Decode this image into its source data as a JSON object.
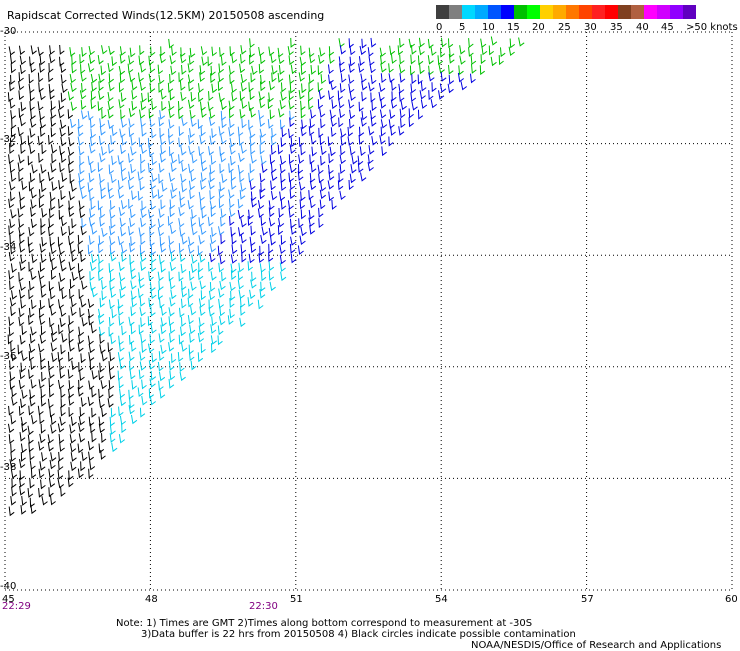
{
  "title": "Rapidscat Corrected Winds(12.5KM) 20150508 ascending",
  "colorbar": {
    "colors": [
      "#3f3f3f",
      "#7f7f7f",
      "#00d8ff",
      "#00aaff",
      "#0055ff",
      "#0000ff",
      "#00c000",
      "#00ff00",
      "#ffd000",
      "#ffaa00",
      "#ff7700",
      "#ff4400",
      "#ff2020",
      "#ff0000",
      "#804020",
      "#b06040",
      "#ff00ff",
      "#d000ff",
      "#9000ff",
      "#6000c0"
    ],
    "labels": [
      "0",
      "5",
      "10",
      "15",
      "20",
      "25",
      "30",
      "35",
      "40",
      "45",
      ">50 knots"
    ]
  },
  "axes": {
    "lat_labels": [
      "-30",
      "-32",
      "-34",
      "-36",
      "-38",
      "-40"
    ],
    "lon_labels": [
      "45",
      "48",
      "51",
      "54",
      "57",
      "60"
    ]
  },
  "times": [
    "22:29",
    "22:30"
  ],
  "notes": [
    "Note: 1) Times are GMT 2)Times along bottom correspond to measurement at -30S",
    "3)Data buffer is 22 hrs from 20150508 4) Black circles indicate possible contamination",
    "NOAA/NESDIS/Office of Research and Applications"
  ],
  "wind_colors": {
    "calm": "#000000",
    "light": "#00d0e8",
    "moderate": "#3399ff",
    "fresh": "#0000e0",
    "strong": "#00c000"
  }
}
